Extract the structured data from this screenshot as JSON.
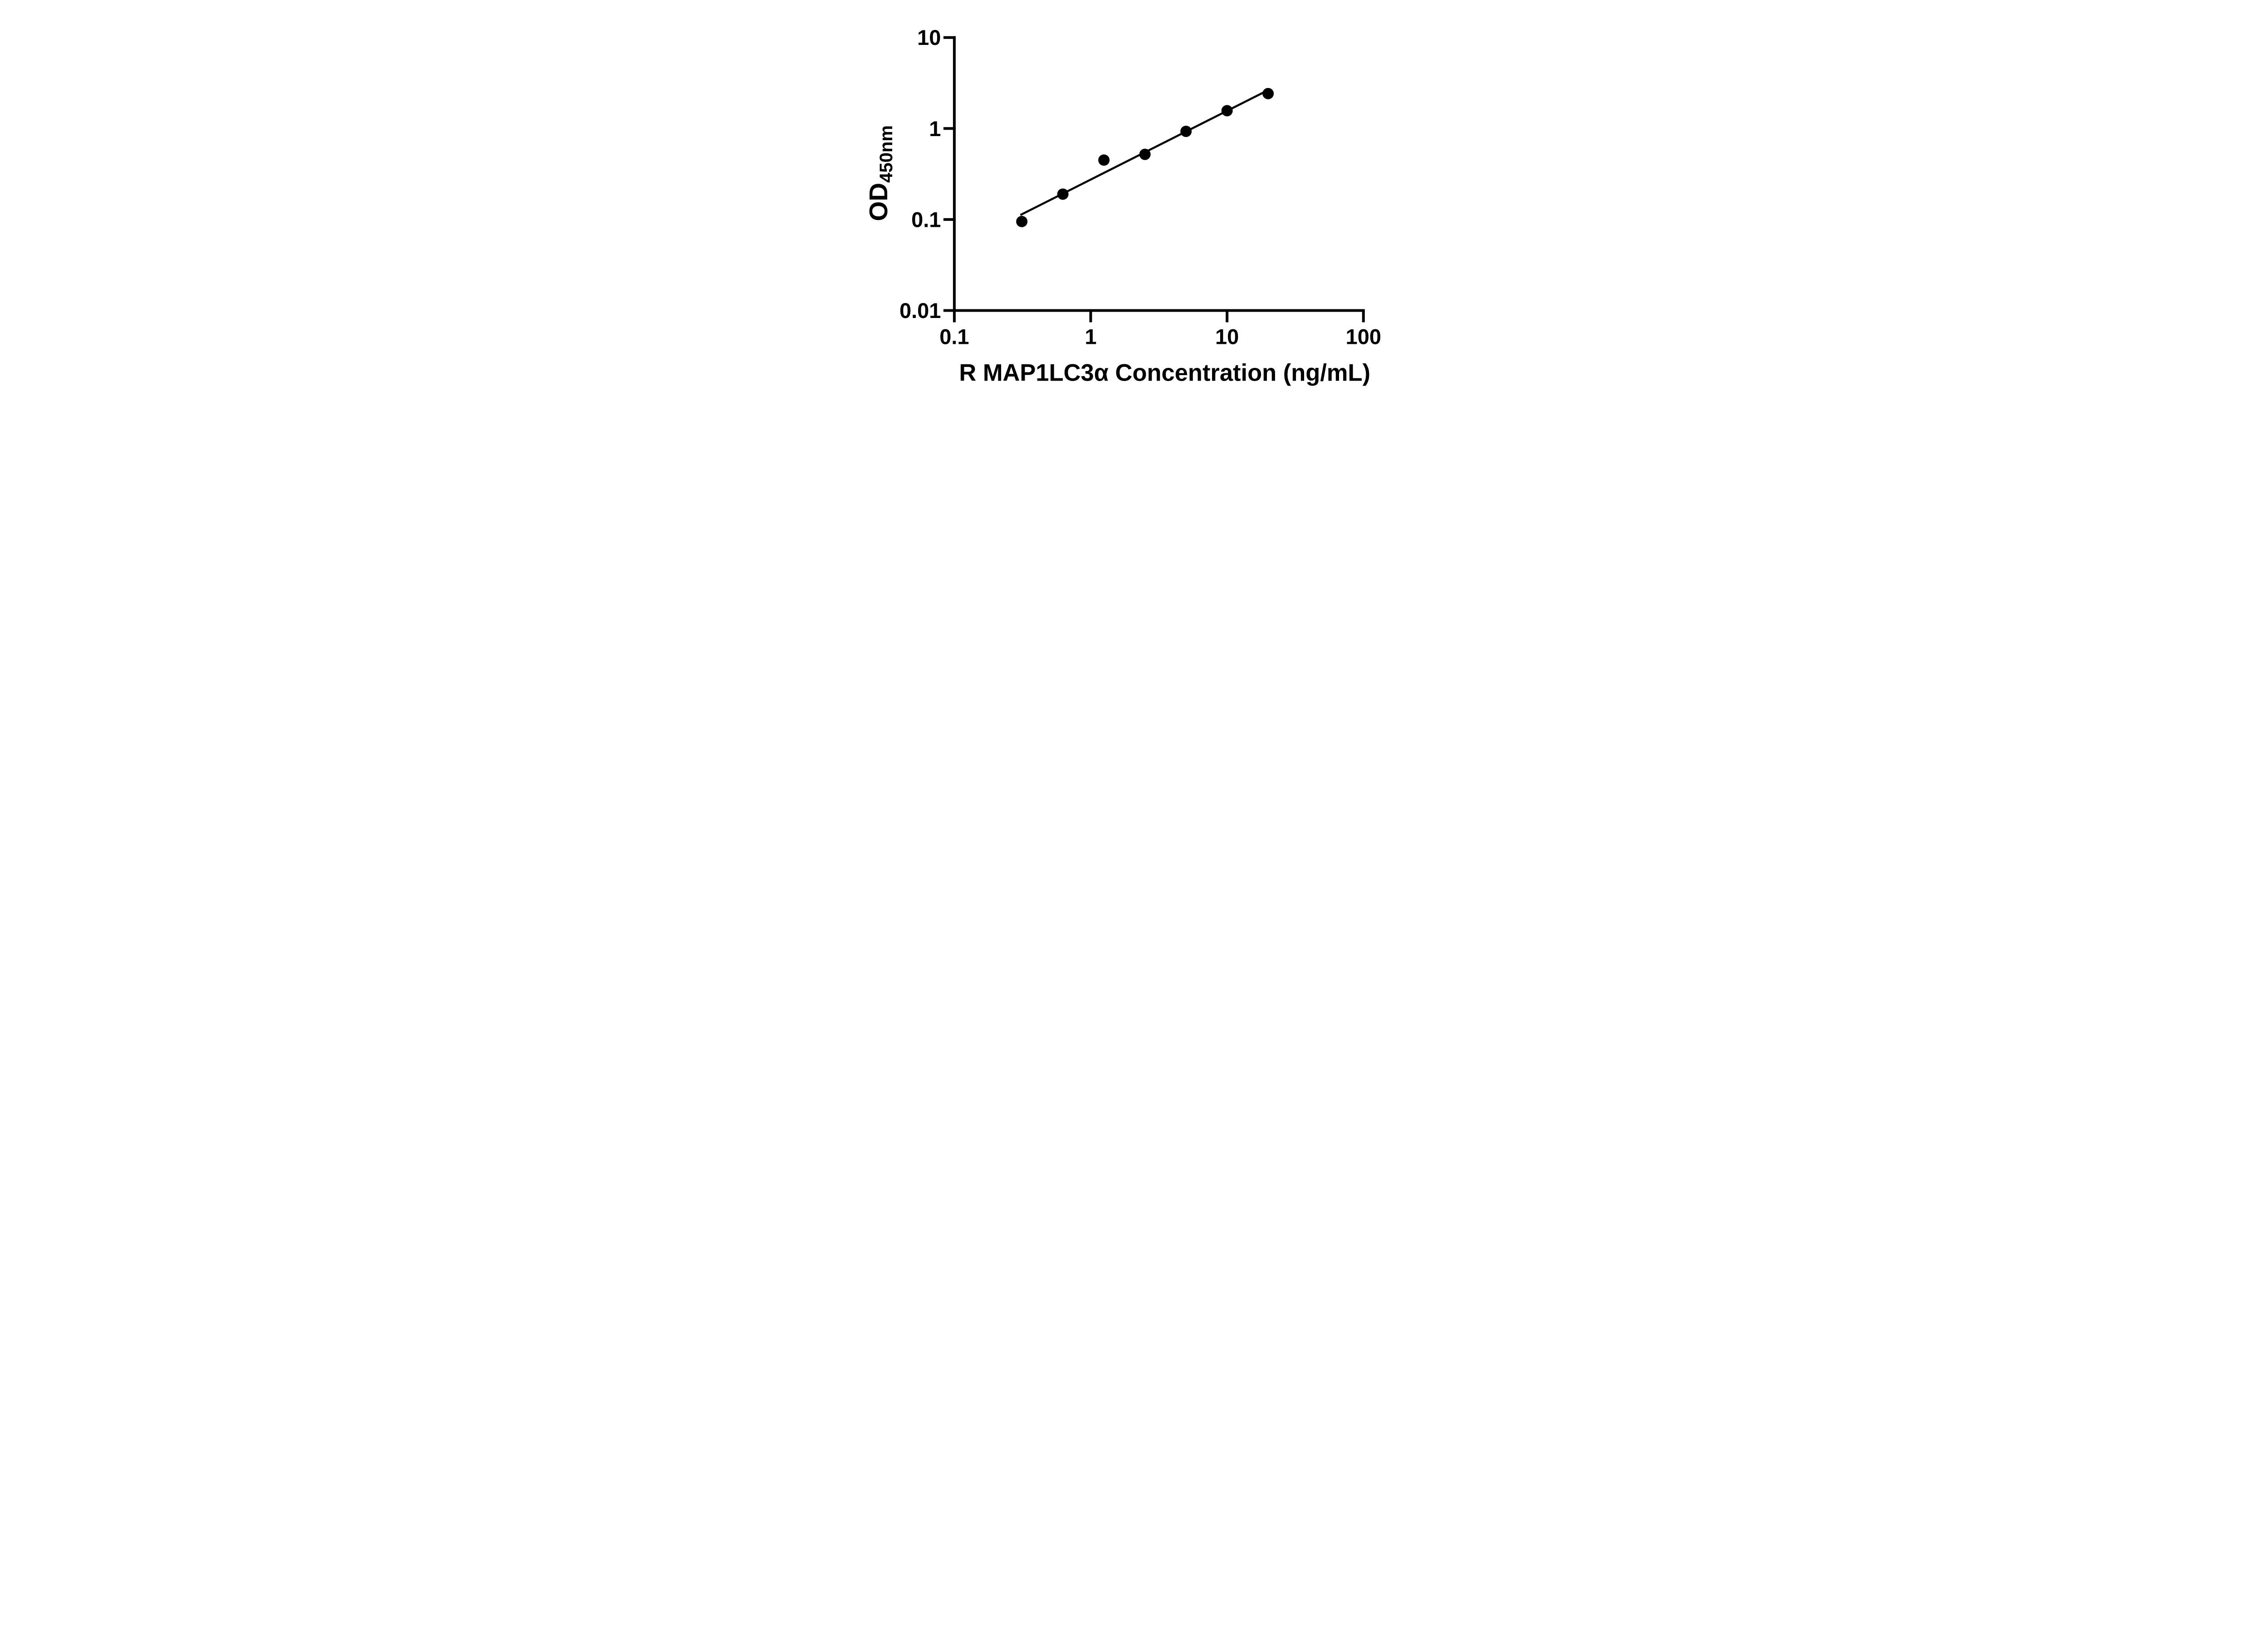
{
  "figure": {
    "background": "#ffffff",
    "ink_color": "#000000",
    "description": "ELISA standard curve, log-log scatter plot with linear trend line"
  },
  "chart_data": {
    "type": "scatter",
    "title": "",
    "xlabel": "R MAP1LC3α Concentration (ng/mL)",
    "ylabel": "OD450nm",
    "ylabel_main": "OD",
    "ylabel_sub": "450nm",
    "x_scale": "log",
    "y_scale": "log",
    "xlim": [
      0.1,
      100
    ],
    "ylim": [
      0.01,
      10
    ],
    "grid": false,
    "legend_position": "none",
    "x_ticks": [
      {
        "value": 0.1,
        "label": "0.1"
      },
      {
        "value": 1,
        "label": "1"
      },
      {
        "value": 10,
        "label": "10"
      },
      {
        "value": 100,
        "label": "100"
      }
    ],
    "y_ticks": [
      {
        "value": 10,
        "label": "10"
      },
      {
        "value": 1,
        "label": "1"
      },
      {
        "value": 0.1,
        "label": "0.1"
      },
      {
        "value": 0.01,
        "label": "0.01"
      }
    ],
    "series": [
      {
        "name": "standard-curve-points",
        "marker": "filled-circle",
        "color": "#000000",
        "points": [
          {
            "x": 0.3125,
            "y": 0.095
          },
          {
            "x": 0.625,
            "y": 0.19
          },
          {
            "x": 1.25,
            "y": 0.45
          },
          {
            "x": 2.5,
            "y": 0.52
          },
          {
            "x": 5,
            "y": 0.93
          },
          {
            "x": 10,
            "y": 1.57
          },
          {
            "x": 20,
            "y": 2.42
          }
        ]
      }
    ],
    "trendline": {
      "x1": 0.305,
      "y1": 0.112,
      "x2": 20.3,
      "y2": 2.67,
      "color": "#000000"
    }
  }
}
